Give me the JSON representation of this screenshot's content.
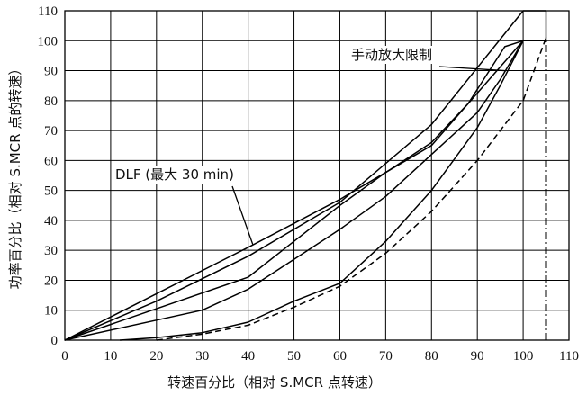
{
  "chart_data": {
    "type": "line",
    "title": "",
    "xlabel": "转速百分比（相对 S.MCR 点转速）",
    "ylabel": "功率百分比（相对 S.MCR 点的转速）",
    "xlim": [
      0,
      110
    ],
    "ylim": [
      0,
      110
    ],
    "xticks": [
      "0",
      "10",
      "20",
      "30",
      "40",
      "50",
      "60",
      "70",
      "80",
      "90",
      "100",
      "110"
    ],
    "yticks": [
      "0",
      "10",
      "20",
      "30",
      "40",
      "50",
      "60",
      "70",
      "80",
      "90",
      "100",
      "110"
    ],
    "grid": true,
    "annotations": [
      {
        "text": "手动放大限制",
        "points_to": [
          96,
          90
        ]
      },
      {
        "text": "DLF (最大 30 min)",
        "points_to": [
          41,
          32
        ]
      }
    ],
    "series": [
      {
        "name": "manual-limit",
        "style": "solid",
        "x": [
          0,
          20,
          40,
          60,
          80,
          100,
          105,
          105
        ],
        "y": [
          0,
          13,
          28,
          46,
          72,
          110,
          110,
          100
        ]
      },
      {
        "name": "dlf-limit",
        "style": "solid",
        "x": [
          0,
          40,
          60,
          80,
          100,
          105
        ],
        "y": [
          0,
          31,
          47,
          65,
          100,
          100
        ]
      },
      {
        "name": "upper-knee-curve",
        "style": "solid",
        "x": [
          0,
          40,
          50,
          60,
          70,
          80,
          88,
          96,
          100
        ],
        "y": [
          0,
          21,
          33,
          45,
          56,
          66,
          79,
          98,
          100
        ]
      },
      {
        "name": "lower-knee-curve",
        "style": "solid",
        "x": [
          0,
          30,
          40,
          50,
          60,
          70,
          80,
          90,
          95,
          100
        ],
        "y": [
          0,
          10,
          17,
          27,
          37,
          48,
          62,
          76,
          87,
          100
        ]
      },
      {
        "name": "propeller-curve",
        "style": "solid",
        "x": [
          12,
          20,
          30,
          40,
          50,
          60,
          70,
          80,
          90,
          95,
          100
        ],
        "y": [
          0,
          0.8,
          2.5,
          6,
          13,
          19,
          33,
          50,
          71,
          85,
          100
        ]
      },
      {
        "name": "propeller-curve-dashed",
        "style": "dashed",
        "x": [
          20,
          30,
          40,
          50,
          60,
          70,
          80,
          90,
          100,
          105
        ],
        "y": [
          0,
          2,
          5,
          11,
          18,
          29,
          43,
          60,
          80,
          101
        ]
      },
      {
        "name": "speed-limit-105",
        "style": "dashdot",
        "x": [
          105,
          105
        ],
        "y": [
          0,
          101
        ]
      }
    ]
  }
}
